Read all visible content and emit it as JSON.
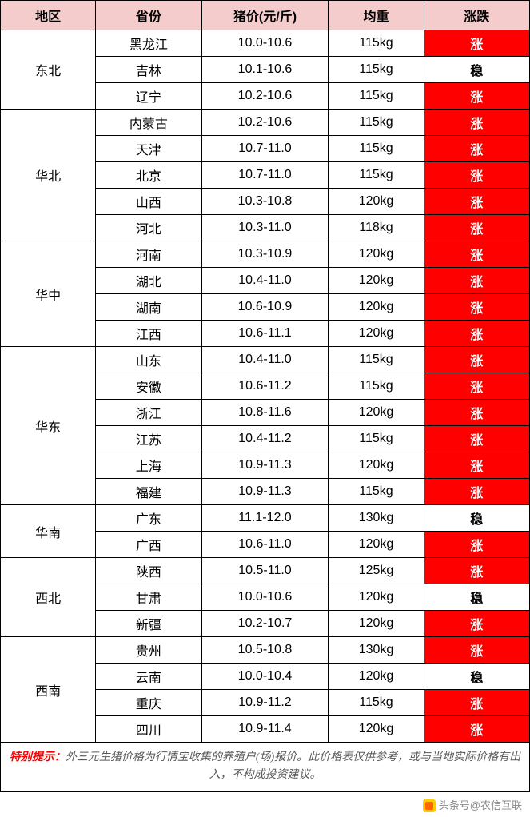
{
  "columns": [
    "地区",
    "省份",
    "猪价(元/斤)",
    "均重",
    "涨跌"
  ],
  "column_widths": [
    "18%",
    "20%",
    "24%",
    "18%",
    "20%"
  ],
  "header_bg": "#f4cccc",
  "header_text_color": "#000000",
  "border_color": "#000000",
  "trend_styles": {
    "涨": {
      "bg": "#ff0000",
      "color": "#ffffff"
    },
    "稳": {
      "bg": "#ffffff",
      "color": "#000000"
    }
  },
  "regions": [
    {
      "name": "东北",
      "rows": [
        {
          "province": "黑龙江",
          "price": "10.0-10.6",
          "weight": "115kg",
          "trend": "涨"
        },
        {
          "province": "吉林",
          "price": "10.1-10.6",
          "weight": "115kg",
          "trend": "稳"
        },
        {
          "province": "辽宁",
          "price": "10.2-10.6",
          "weight": "115kg",
          "trend": "涨"
        }
      ]
    },
    {
      "name": "华北",
      "rows": [
        {
          "province": "内蒙古",
          "price": "10.2-10.6",
          "weight": "115kg",
          "trend": "涨"
        },
        {
          "province": "天津",
          "price": "10.7-11.0",
          "weight": "115kg",
          "trend": "涨"
        },
        {
          "province": "北京",
          "price": "10.7-11.0",
          "weight": "115kg",
          "trend": "涨"
        },
        {
          "province": "山西",
          "price": "10.3-10.8",
          "weight": "120kg",
          "trend": "涨"
        },
        {
          "province": "河北",
          "price": "10.3-11.0",
          "weight": "118kg",
          "trend": "涨"
        }
      ]
    },
    {
      "name": "华中",
      "rows": [
        {
          "province": "河南",
          "price": "10.3-10.9",
          "weight": "120kg",
          "trend": "涨"
        },
        {
          "province": "湖北",
          "price": "10.4-11.0",
          "weight": "120kg",
          "trend": "涨"
        },
        {
          "province": "湖南",
          "price": "10.6-10.9",
          "weight": "120kg",
          "trend": "涨"
        },
        {
          "province": "江西",
          "price": "10.6-11.1",
          "weight": "120kg",
          "trend": "涨"
        }
      ]
    },
    {
      "name": "华东",
      "rows": [
        {
          "province": "山东",
          "price": "10.4-11.0",
          "weight": "115kg",
          "trend": "涨"
        },
        {
          "province": "安徽",
          "price": "10.6-11.2",
          "weight": "115kg",
          "trend": "涨"
        },
        {
          "province": "浙江",
          "price": "10.8-11.6",
          "weight": "120kg",
          "trend": "涨"
        },
        {
          "province": "江苏",
          "price": "10.4-11.2",
          "weight": "115kg",
          "trend": "涨"
        },
        {
          "province": "上海",
          "price": "10.9-11.3",
          "weight": "120kg",
          "trend": "涨"
        },
        {
          "province": "福建",
          "price": "10.9-11.3",
          "weight": "115kg",
          "trend": "涨"
        }
      ]
    },
    {
      "name": "华南",
      "rows": [
        {
          "province": "广东",
          "price": "11.1-12.0",
          "weight": "130kg",
          "trend": "稳"
        },
        {
          "province": "广西",
          "price": "10.6-11.0",
          "weight": "120kg",
          "trend": "涨"
        }
      ]
    },
    {
      "name": "西北",
      "rows": [
        {
          "province": "陕西",
          "price": "10.5-11.0",
          "weight": "125kg",
          "trend": "涨"
        },
        {
          "province": "甘肃",
          "price": "10.0-10.6",
          "weight": "120kg",
          "trend": "稳"
        },
        {
          "province": "新疆",
          "price": "10.2-10.7",
          "weight": "120kg",
          "trend": "涨"
        }
      ]
    },
    {
      "name": "西南",
      "rows": [
        {
          "province": "贵州",
          "price": "10.5-10.8",
          "weight": "130kg",
          "trend": "涨"
        },
        {
          "province": "云南",
          "price": "10.0-10.4",
          "weight": "120kg",
          "trend": "稳"
        },
        {
          "province": "重庆",
          "price": "10.9-11.2",
          "weight": "115kg",
          "trend": "涨"
        },
        {
          "province": "四川",
          "price": "10.9-11.4",
          "weight": "120kg",
          "trend": "涨"
        }
      ]
    }
  ],
  "footer": {
    "label": "特别提示：",
    "body": "外三元生猪价格为行情宝收集的养殖户(场)报价。此价格表仅供参考，或与当地实际价格有出入，不构成投资建议。"
  },
  "attribution": "头条号@农信互联"
}
